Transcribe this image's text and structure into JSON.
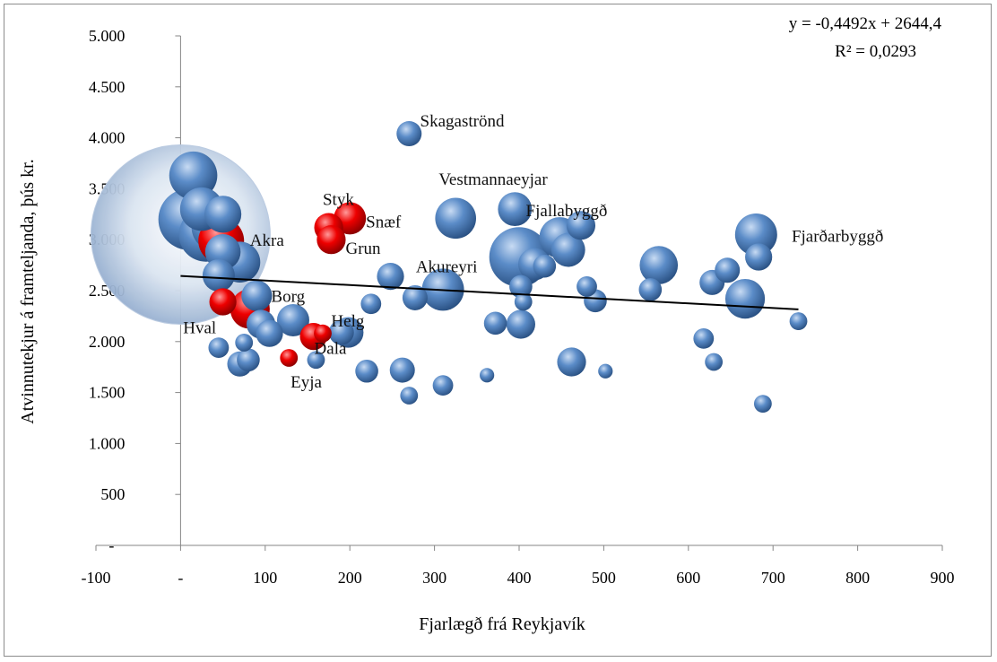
{
  "chart_data": {
    "type": "scatter",
    "subtype": "bubble",
    "xlabel": "Fjarlægð frá Reykjavík",
    "ylabel": "Atvinnutekjur á framteljanda, þús kr.",
    "xlim": [
      -100,
      900
    ],
    "ylim": [
      0,
      5000
    ],
    "x_ticks": [
      "-100",
      "-",
      "100",
      "200",
      "300",
      "400",
      "500",
      "600",
      "700",
      "800",
      "900"
    ],
    "y_ticks": [
      "-",
      "500",
      "1.000",
      "1.500",
      "2.000",
      "2.500",
      "3.000",
      "3.500",
      "4.000",
      "4.500",
      "5.000"
    ],
    "grid": false,
    "colors": {
      "blue": "#4f81bd",
      "red": "#e00000",
      "capital": "#c6d6ea"
    },
    "trendline": {
      "equation": "y = -0,4492x + 2644,4",
      "r2": "R² = 0,0293",
      "slope": -0.4492,
      "intercept": 2644.4,
      "x_range": [
        0,
        730
      ]
    },
    "series": [
      {
        "color": "blue",
        "points": [
          {
            "x": 0,
            "y": 3050,
            "size": 120,
            "capital": true
          },
          {
            "x": 15,
            "y": 3630,
            "size": 22
          },
          {
            "x": 10,
            "y": 3200,
            "size": 36
          },
          {
            "x": 30,
            "y": 3050,
            "size": 28
          },
          {
            "x": 25,
            "y": 3300,
            "size": 18
          },
          {
            "x": 40,
            "y": 3120,
            "size": 20
          },
          {
            "x": 50,
            "y": 3250,
            "size": 13
          },
          {
            "x": 70,
            "y": 2780,
            "size": 16
          },
          {
            "x": 50,
            "y": 2880,
            "size": 12
          },
          {
            "x": 45,
            "y": 2650,
            "size": 10
          },
          {
            "x": 90,
            "y": 2450,
            "size": 9
          },
          {
            "x": 95,
            "y": 2170,
            "size": 8
          },
          {
            "x": 105,
            "y": 2080,
            "size": 7
          },
          {
            "x": 133,
            "y": 2210,
            "size": 10
          },
          {
            "x": 190,
            "y": 2090,
            "size": 6
          },
          {
            "x": 198,
            "y": 2090,
            "size": 9
          },
          {
            "x": 45,
            "y": 1940,
            "size": 4
          },
          {
            "x": 75,
            "y": 1990,
            "size": 3
          },
          {
            "x": 80,
            "y": 1820,
            "size": 5
          },
          {
            "x": 70,
            "y": 1780,
            "size": 6
          },
          {
            "x": 160,
            "y": 1820,
            "size": 3
          },
          {
            "x": 220,
            "y": 1710,
            "size": 5
          },
          {
            "x": 225,
            "y": 2370,
            "size": 4
          },
          {
            "x": 248,
            "y": 2640,
            "size": 7
          },
          {
            "x": 262,
            "y": 1720,
            "size": 6
          },
          {
            "x": 270,
            "y": 4040,
            "size": 6
          },
          {
            "x": 270,
            "y": 1470,
            "size": 3
          },
          {
            "x": 277,
            "y": 2430,
            "size": 6
          },
          {
            "x": 310,
            "y": 1570,
            "size": 4
          },
          {
            "x": 310,
            "y": 2510,
            "size": 17
          },
          {
            "x": 325,
            "y": 3210,
            "size": 16
          },
          {
            "x": 362,
            "y": 1670,
            "size": 2
          },
          {
            "x": 372,
            "y": 2180,
            "size": 5
          },
          {
            "x": 395,
            "y": 3300,
            "size": 11
          },
          {
            "x": 400,
            "y": 2830,
            "size": 34,
            "label": "Akureyri"
          },
          {
            "x": 402,
            "y": 2170,
            "size": 8
          },
          {
            "x": 402,
            "y": 2540,
            "size": 5
          },
          {
            "x": 405,
            "y": 2390,
            "size": 3
          },
          {
            "x": 418,
            "y": 2760,
            "size": 10
          },
          {
            "x": 430,
            "y": 2740,
            "size": 5
          },
          {
            "x": 448,
            "y": 3020,
            "size": 16
          },
          {
            "x": 458,
            "y": 2900,
            "size": 11
          },
          {
            "x": 462,
            "y": 1800,
            "size": 8
          },
          {
            "x": 473,
            "y": 3140,
            "size": 8
          },
          {
            "x": 480,
            "y": 2540,
            "size": 4
          },
          {
            "x": 490,
            "y": 2400,
            "size": 5
          },
          {
            "x": 502,
            "y": 1710,
            "size": 2
          },
          {
            "x": 555,
            "y": 2510,
            "size": 5
          },
          {
            "x": 565,
            "y": 2750,
            "size": 14
          },
          {
            "x": 618,
            "y": 2030,
            "size": 4
          },
          {
            "x": 628,
            "y": 2580,
            "size": 6
          },
          {
            "x": 630,
            "y": 1800,
            "size": 3
          },
          {
            "x": 646,
            "y": 2700,
            "size": 6
          },
          {
            "x": 667,
            "y": 2420,
            "size": 15
          },
          {
            "x": 680,
            "y": 3050,
            "size": 17
          },
          {
            "x": 683,
            "y": 2830,
            "size": 7
          },
          {
            "x": 688,
            "y": 1390,
            "size": 3
          },
          {
            "x": 730,
            "y": 2200,
            "size": 3
          }
        ]
      },
      {
        "color": "red",
        "points": [
          {
            "x": 48,
            "y": 2990,
            "size": 20
          },
          {
            "x": 50,
            "y": 2390,
            "size": 7
          },
          {
            "x": 82,
            "y": 2320,
            "size": 15
          },
          {
            "x": 128,
            "y": 1840,
            "size": 3
          },
          {
            "x": 157,
            "y": 2050,
            "size": 7
          },
          {
            "x": 168,
            "y": 2080,
            "size": 3
          },
          {
            "x": 175,
            "y": 3120,
            "size": 8
          },
          {
            "x": 178,
            "y": 3000,
            "size": 8
          },
          {
            "x": 200,
            "y": 3210,
            "size": 10
          }
        ]
      }
    ],
    "annotations": [
      {
        "text": "Skagaströnd",
        "x": 283,
        "y": 4110
      },
      {
        "text": "Vestmannaeyjar",
        "x": 305,
        "y": 3540
      },
      {
        "text": "Styk",
        "x": 168,
        "y": 3340
      },
      {
        "text": "Snæf",
        "x": 219,
        "y": 3120
      },
      {
        "text": "Akra",
        "x": 82,
        "y": 2940
      },
      {
        "text": "Grun",
        "x": 195,
        "y": 2860
      },
      {
        "text": "Fjallabyggð",
        "x": 408,
        "y": 3230
      },
      {
        "text": "Fjarðarbyggð",
        "x": 722,
        "y": 2980
      },
      {
        "text": "Akureyri",
        "x": 278,
        "y": 2680
      },
      {
        "text": "Borg",
        "x": 107,
        "y": 2390
      },
      {
        "text": "Helg",
        "x": 178,
        "y": 2150
      },
      {
        "text": "Hval",
        "x": 3,
        "y": 2080
      },
      {
        "text": "Dala",
        "x": 158,
        "y": 1880
      },
      {
        "text": "Eyja",
        "x": 130,
        "y": 1550
      }
    ]
  }
}
